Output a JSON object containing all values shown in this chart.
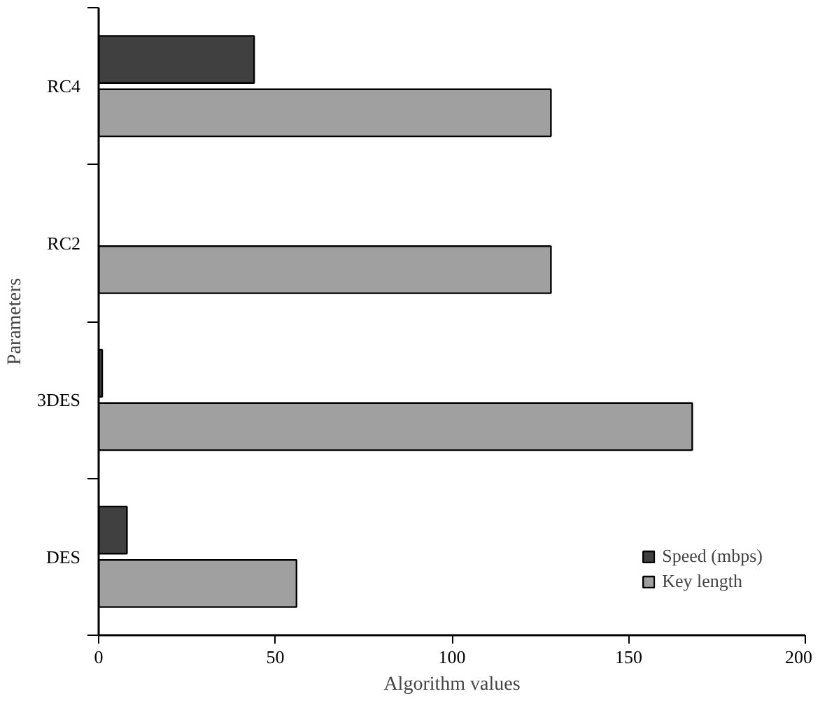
{
  "chart_data": {
    "type": "bar",
    "orientation": "horizontal",
    "xlabel": "Algorithm values",
    "ylabel": "Parameters",
    "categories": [
      "RC4",
      "RC2",
      "3DES",
      "DES"
    ],
    "series": [
      {
        "name": "Speed (mbps)",
        "color": "#404040",
        "values": [
          44,
          null,
          1,
          8
        ]
      },
      {
        "name": "Key length",
        "color": "#a0a0a0",
        "values": [
          128,
          128,
          168,
          56
        ]
      }
    ],
    "xlim": [
      0,
      200
    ],
    "xticks": [
      0,
      50,
      100,
      150,
      200
    ],
    "legend": "bottom right"
  }
}
